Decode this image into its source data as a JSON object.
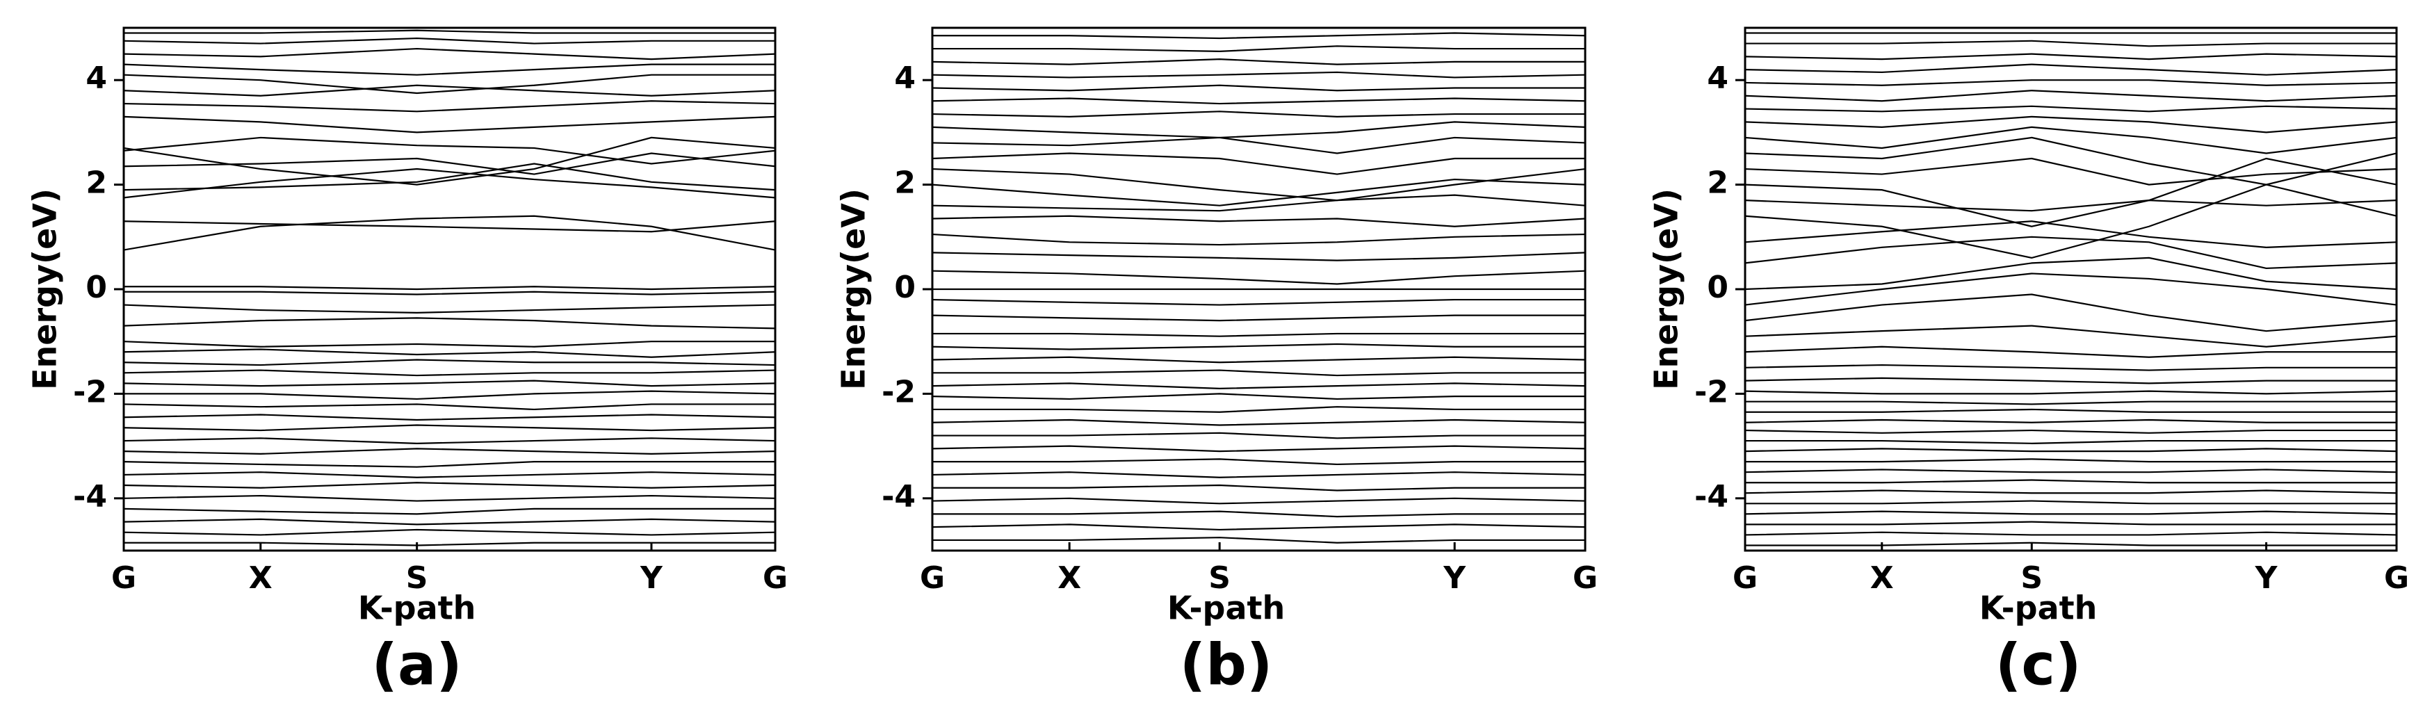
{
  "chart_data": [
    {
      "type": "band",
      "caption": "(a)",
      "ylabel": "Energy(eV)",
      "xlabel": "K-path",
      "line_color": "#000000",
      "x": [
        0,
        0.21,
        0.45,
        0.63,
        0.81,
        1
      ],
      "xlim": [
        0,
        1
      ],
      "ylim": [
        -5,
        5
      ],
      "yticks": [
        -4,
        -2,
        0,
        2,
        4
      ],
      "xticks": [
        {
          "value": 0,
          "label": "G"
        },
        {
          "value": 0.21,
          "label": "X"
        },
        {
          "value": 0.45,
          "label": "S"
        },
        {
          "value": 0.81,
          "label": "Y"
        },
        {
          "value": 1,
          "label": "G"
        }
      ],
      "bands": [
        [
          -0.05,
          -0.05,
          -0.1,
          -0.05,
          -0.1,
          -0.05
        ],
        [
          0.05,
          0.05,
          0.0,
          0.05,
          0.0,
          0.05
        ],
        [
          -0.3,
          -0.4,
          -0.45,
          -0.4,
          -0.35,
          -0.3
        ],
        [
          -0.7,
          -0.6,
          -0.55,
          -0.6,
          -0.7,
          -0.75
        ],
        [
          0.75,
          1.2,
          1.35,
          1.4,
          1.2,
          0.75
        ],
        [
          1.3,
          1.25,
          1.2,
          1.15,
          1.1,
          1.3
        ],
        [
          1.75,
          2.05,
          2.3,
          2.1,
          1.95,
          1.75
        ],
        [
          1.9,
          1.95,
          2.05,
          2.4,
          2.05,
          1.9
        ],
        [
          2.35,
          2.4,
          2.5,
          2.2,
          2.6,
          2.35
        ],
        [
          2.7,
          2.3,
          2.0,
          2.3,
          2.9,
          2.7
        ],
        [
          2.65,
          2.9,
          2.75,
          2.7,
          2.4,
          2.65
        ],
        [
          3.3,
          3.2,
          3.0,
          3.1,
          3.2,
          3.3
        ],
        [
          3.55,
          3.5,
          3.4,
          3.5,
          3.6,
          3.55
        ],
        [
          3.8,
          3.7,
          3.9,
          3.8,
          3.7,
          3.8
        ],
        [
          4.1,
          4.0,
          3.75,
          3.9,
          4.1,
          4.1
        ],
        [
          4.3,
          4.2,
          4.1,
          4.2,
          4.3,
          4.3
        ],
        [
          4.5,
          4.45,
          4.6,
          4.5,
          4.4,
          4.5
        ],
        [
          4.75,
          4.7,
          4.8,
          4.7,
          4.75,
          4.75
        ],
        [
          4.9,
          4.9,
          4.95,
          4.9,
          4.9,
          4.9
        ],
        [
          -1.0,
          -1.1,
          -1.05,
          -1.1,
          -1.0,
          -1.0
        ],
        [
          -1.2,
          -1.15,
          -1.25,
          -1.2,
          -1.3,
          -1.2
        ],
        [
          -1.4,
          -1.45,
          -1.35,
          -1.4,
          -1.4,
          -1.45
        ],
        [
          -1.6,
          -1.55,
          -1.65,
          -1.6,
          -1.6,
          -1.55
        ],
        [
          -1.8,
          -1.85,
          -1.8,
          -1.75,
          -1.85,
          -1.8
        ],
        [
          -2.0,
          -2.0,
          -2.1,
          -2.0,
          -1.95,
          -2.0
        ],
        [
          -2.2,
          -2.25,
          -2.2,
          -2.3,
          -2.2,
          -2.2
        ],
        [
          -2.45,
          -2.4,
          -2.5,
          -2.45,
          -2.4,
          -2.45
        ],
        [
          -2.65,
          -2.7,
          -2.6,
          -2.65,
          -2.7,
          -2.65
        ],
        [
          -2.9,
          -2.85,
          -2.95,
          -2.9,
          -2.85,
          -2.9
        ],
        [
          -3.1,
          -3.15,
          -3.05,
          -3.1,
          -3.15,
          -3.1
        ],
        [
          -3.3,
          -3.35,
          -3.4,
          -3.3,
          -3.3,
          -3.3
        ],
        [
          -3.55,
          -3.5,
          -3.6,
          -3.55,
          -3.5,
          -3.55
        ],
        [
          -3.75,
          -3.8,
          -3.7,
          -3.75,
          -3.8,
          -3.75
        ],
        [
          -4.0,
          -3.95,
          -4.05,
          -4.0,
          -3.95,
          -4.0
        ],
        [
          -4.2,
          -4.25,
          -4.3,
          -4.2,
          -4.2,
          -4.2
        ],
        [
          -4.45,
          -4.4,
          -4.5,
          -4.45,
          -4.4,
          -4.45
        ],
        [
          -4.65,
          -4.7,
          -4.6,
          -4.65,
          -4.7,
          -4.65
        ],
        [
          -4.85,
          -4.85,
          -4.9,
          -4.85,
          -4.85,
          -4.85
        ]
      ]
    },
    {
      "type": "band",
      "caption": "(b)",
      "ylabel": "Energy(eV)",
      "xlabel": "K-path",
      "line_color": "#000000",
      "x": [
        0,
        0.21,
        0.44,
        0.62,
        0.8,
        1
      ],
      "xlim": [
        0,
        1
      ],
      "ylim": [
        -5,
        5
      ],
      "yticks": [
        -4,
        -2,
        0,
        2,
        4
      ],
      "xticks": [
        {
          "value": 0,
          "label": "G"
        },
        {
          "value": 0.21,
          "label": "X"
        },
        {
          "value": 0.44,
          "label": "S"
        },
        {
          "value": 0.8,
          "label": "Y"
        },
        {
          "value": 1,
          "label": "G"
        }
      ],
      "bands": [
        [
          0.0,
          0.0,
          0.0,
          0.0,
          0.0,
          0.0
        ],
        [
          0.35,
          0.3,
          0.2,
          0.1,
          0.25,
          0.35
        ],
        [
          -0.2,
          -0.25,
          -0.3,
          -0.25,
          -0.2,
          -0.2
        ],
        [
          -0.5,
          -0.55,
          -0.6,
          -0.55,
          -0.5,
          -0.5
        ],
        [
          0.7,
          0.65,
          0.6,
          0.55,
          0.6,
          0.7
        ],
        [
          1.05,
          0.9,
          0.85,
          0.9,
          1.0,
          1.05
        ],
        [
          1.35,
          1.4,
          1.3,
          1.35,
          1.2,
          1.35
        ],
        [
          1.6,
          1.55,
          1.5,
          1.7,
          1.8,
          1.6
        ],
        [
          2.0,
          1.8,
          1.6,
          1.85,
          2.1,
          2.0
        ],
        [
          2.3,
          2.2,
          1.9,
          1.7,
          2.0,
          2.3
        ],
        [
          2.5,
          2.6,
          2.5,
          2.2,
          2.5,
          2.5
        ],
        [
          2.8,
          2.75,
          2.9,
          2.6,
          2.9,
          2.8
        ],
        [
          3.1,
          3.0,
          2.9,
          3.0,
          3.2,
          3.1
        ],
        [
          3.35,
          3.3,
          3.4,
          3.3,
          3.35,
          3.35
        ],
        [
          3.6,
          3.65,
          3.55,
          3.6,
          3.65,
          3.6
        ],
        [
          3.85,
          3.8,
          3.9,
          3.8,
          3.85,
          3.85
        ],
        [
          4.1,
          4.05,
          4.1,
          4.15,
          4.05,
          4.1
        ],
        [
          4.35,
          4.3,
          4.4,
          4.3,
          4.35,
          4.35
        ],
        [
          4.6,
          4.6,
          4.55,
          4.65,
          4.6,
          4.6
        ],
        [
          4.85,
          4.85,
          4.8,
          4.85,
          4.9,
          4.85
        ],
        [
          -0.85,
          -0.85,
          -0.9,
          -0.85,
          -0.85,
          -0.85
        ],
        [
          -1.1,
          -1.15,
          -1.1,
          -1.05,
          -1.1,
          -1.1
        ],
        [
          -1.35,
          -1.3,
          -1.4,
          -1.35,
          -1.3,
          -1.35
        ],
        [
          -1.6,
          -1.6,
          -1.55,
          -1.65,
          -1.6,
          -1.6
        ],
        [
          -1.85,
          -1.8,
          -1.9,
          -1.85,
          -1.8,
          -1.85
        ],
        [
          -2.05,
          -2.1,
          -2.0,
          -2.1,
          -2.05,
          -2.05
        ],
        [
          -2.3,
          -2.3,
          -2.35,
          -2.25,
          -2.3,
          -2.3
        ],
        [
          -2.55,
          -2.5,
          -2.6,
          -2.55,
          -2.5,
          -2.55
        ],
        [
          -2.8,
          -2.8,
          -2.75,
          -2.85,
          -2.8,
          -2.8
        ],
        [
          -3.05,
          -3.0,
          -3.1,
          -3.05,
          -3.0,
          -3.05
        ],
        [
          -3.3,
          -3.3,
          -3.25,
          -3.35,
          -3.3,
          -3.3
        ],
        [
          -3.55,
          -3.5,
          -3.6,
          -3.55,
          -3.5,
          -3.55
        ],
        [
          -3.8,
          -3.8,
          -3.75,
          -3.85,
          -3.8,
          -3.8
        ],
        [
          -4.05,
          -4.0,
          -4.1,
          -4.05,
          -4.0,
          -4.05
        ],
        [
          -4.3,
          -4.3,
          -4.25,
          -4.35,
          -4.3,
          -4.3
        ],
        [
          -4.55,
          -4.5,
          -4.6,
          -4.55,
          -4.5,
          -4.55
        ],
        [
          -4.8,
          -4.8,
          -4.75,
          -4.85,
          -4.8,
          -4.8
        ]
      ]
    },
    {
      "type": "band",
      "caption": "(c)",
      "ylabel": "Energy(eV)",
      "xlabel": "K-path",
      "line_color": "#000000",
      "x": [
        0,
        0.21,
        0.44,
        0.62,
        0.8,
        1
      ],
      "xlim": [
        0,
        1
      ],
      "ylim": [
        -5,
        5
      ],
      "yticks": [
        -4,
        -2,
        0,
        2,
        4
      ],
      "xticks": [
        {
          "value": 0,
          "label": "G"
        },
        {
          "value": 0.21,
          "label": "X"
        },
        {
          "value": 0.44,
          "label": "S"
        },
        {
          "value": 0.8,
          "label": "Y"
        },
        {
          "value": 1,
          "label": "G"
        }
      ],
      "bands": [
        [
          0.0,
          0.1,
          0.5,
          0.6,
          0.15,
          0.0
        ],
        [
          -0.3,
          0.0,
          0.3,
          0.2,
          0.0,
          -0.3
        ],
        [
          -0.6,
          -0.3,
          -0.1,
          -0.5,
          -0.8,
          -0.6
        ],
        [
          -0.9,
          -0.8,
          -0.7,
          -0.9,
          -1.1,
          -0.9
        ],
        [
          -1.2,
          -1.1,
          -1.2,
          -1.3,
          -1.2,
          -1.2
        ],
        [
          -1.5,
          -1.45,
          -1.5,
          -1.55,
          -1.5,
          -1.5
        ],
        [
          0.5,
          0.8,
          1.0,
          0.9,
          0.4,
          0.5
        ],
        [
          0.9,
          1.1,
          1.3,
          1.0,
          0.8,
          0.9
        ],
        [
          1.4,
          1.2,
          0.6,
          1.2,
          2.0,
          1.4
        ],
        [
          1.7,
          1.6,
          1.5,
          1.7,
          1.6,
          1.7
        ],
        [
          2.0,
          1.9,
          1.2,
          1.7,
          2.5,
          2.0
        ],
        [
          2.3,
          2.2,
          2.5,
          2.0,
          2.2,
          2.3
        ],
        [
          2.6,
          2.5,
          2.9,
          2.4,
          2.0,
          2.6
        ],
        [
          2.9,
          2.7,
          3.1,
          2.9,
          2.6,
          2.9
        ],
        [
          3.2,
          3.1,
          3.3,
          3.2,
          3.0,
          3.2
        ],
        [
          3.45,
          3.4,
          3.5,
          3.4,
          3.5,
          3.45
        ],
        [
          3.7,
          3.6,
          3.8,
          3.7,
          3.6,
          3.7
        ],
        [
          3.95,
          3.9,
          4.0,
          4.0,
          3.9,
          3.95
        ],
        [
          4.2,
          4.15,
          4.3,
          4.2,
          4.1,
          4.2
        ],
        [
          4.45,
          4.4,
          4.5,
          4.4,
          4.5,
          4.45
        ],
        [
          4.7,
          4.7,
          4.75,
          4.65,
          4.7,
          4.7
        ],
        [
          4.9,
          4.9,
          4.9,
          4.9,
          4.9,
          4.9
        ],
        [
          -1.75,
          -1.7,
          -1.75,
          -1.8,
          -1.75,
          -1.75
        ],
        [
          -1.95,
          -2.0,
          -2.0,
          -1.95,
          -2.0,
          -1.95
        ],
        [
          -2.15,
          -2.15,
          -2.2,
          -2.15,
          -2.15,
          -2.15
        ],
        [
          -2.35,
          -2.35,
          -2.3,
          -2.35,
          -2.35,
          -2.35
        ],
        [
          -2.55,
          -2.5,
          -2.55,
          -2.5,
          -2.55,
          -2.55
        ],
        [
          -2.7,
          -2.75,
          -2.7,
          -2.75,
          -2.7,
          -2.7
        ],
        [
          -2.9,
          -2.9,
          -2.95,
          -2.9,
          -2.9,
          -2.9
        ],
        [
          -3.1,
          -3.05,
          -3.1,
          -3.1,
          -3.05,
          -3.1
        ],
        [
          -3.3,
          -3.3,
          -3.25,
          -3.3,
          -3.3,
          -3.3
        ],
        [
          -3.5,
          -3.45,
          -3.5,
          -3.5,
          -3.45,
          -3.5
        ],
        [
          -3.7,
          -3.7,
          -3.65,
          -3.7,
          -3.7,
          -3.7
        ],
        [
          -3.9,
          -3.85,
          -3.9,
          -3.9,
          -3.85,
          -3.9
        ],
        [
          -4.1,
          -4.1,
          -4.05,
          -4.1,
          -4.1,
          -4.1
        ],
        [
          -4.3,
          -4.25,
          -4.3,
          -4.3,
          -4.25,
          -4.3
        ],
        [
          -4.5,
          -4.5,
          -4.45,
          -4.5,
          -4.5,
          -4.5
        ],
        [
          -4.7,
          -4.65,
          -4.7,
          -4.7,
          -4.65,
          -4.7
        ],
        [
          -4.9,
          -4.9,
          -4.85,
          -4.9,
          -4.9,
          -4.9
        ]
      ]
    }
  ]
}
